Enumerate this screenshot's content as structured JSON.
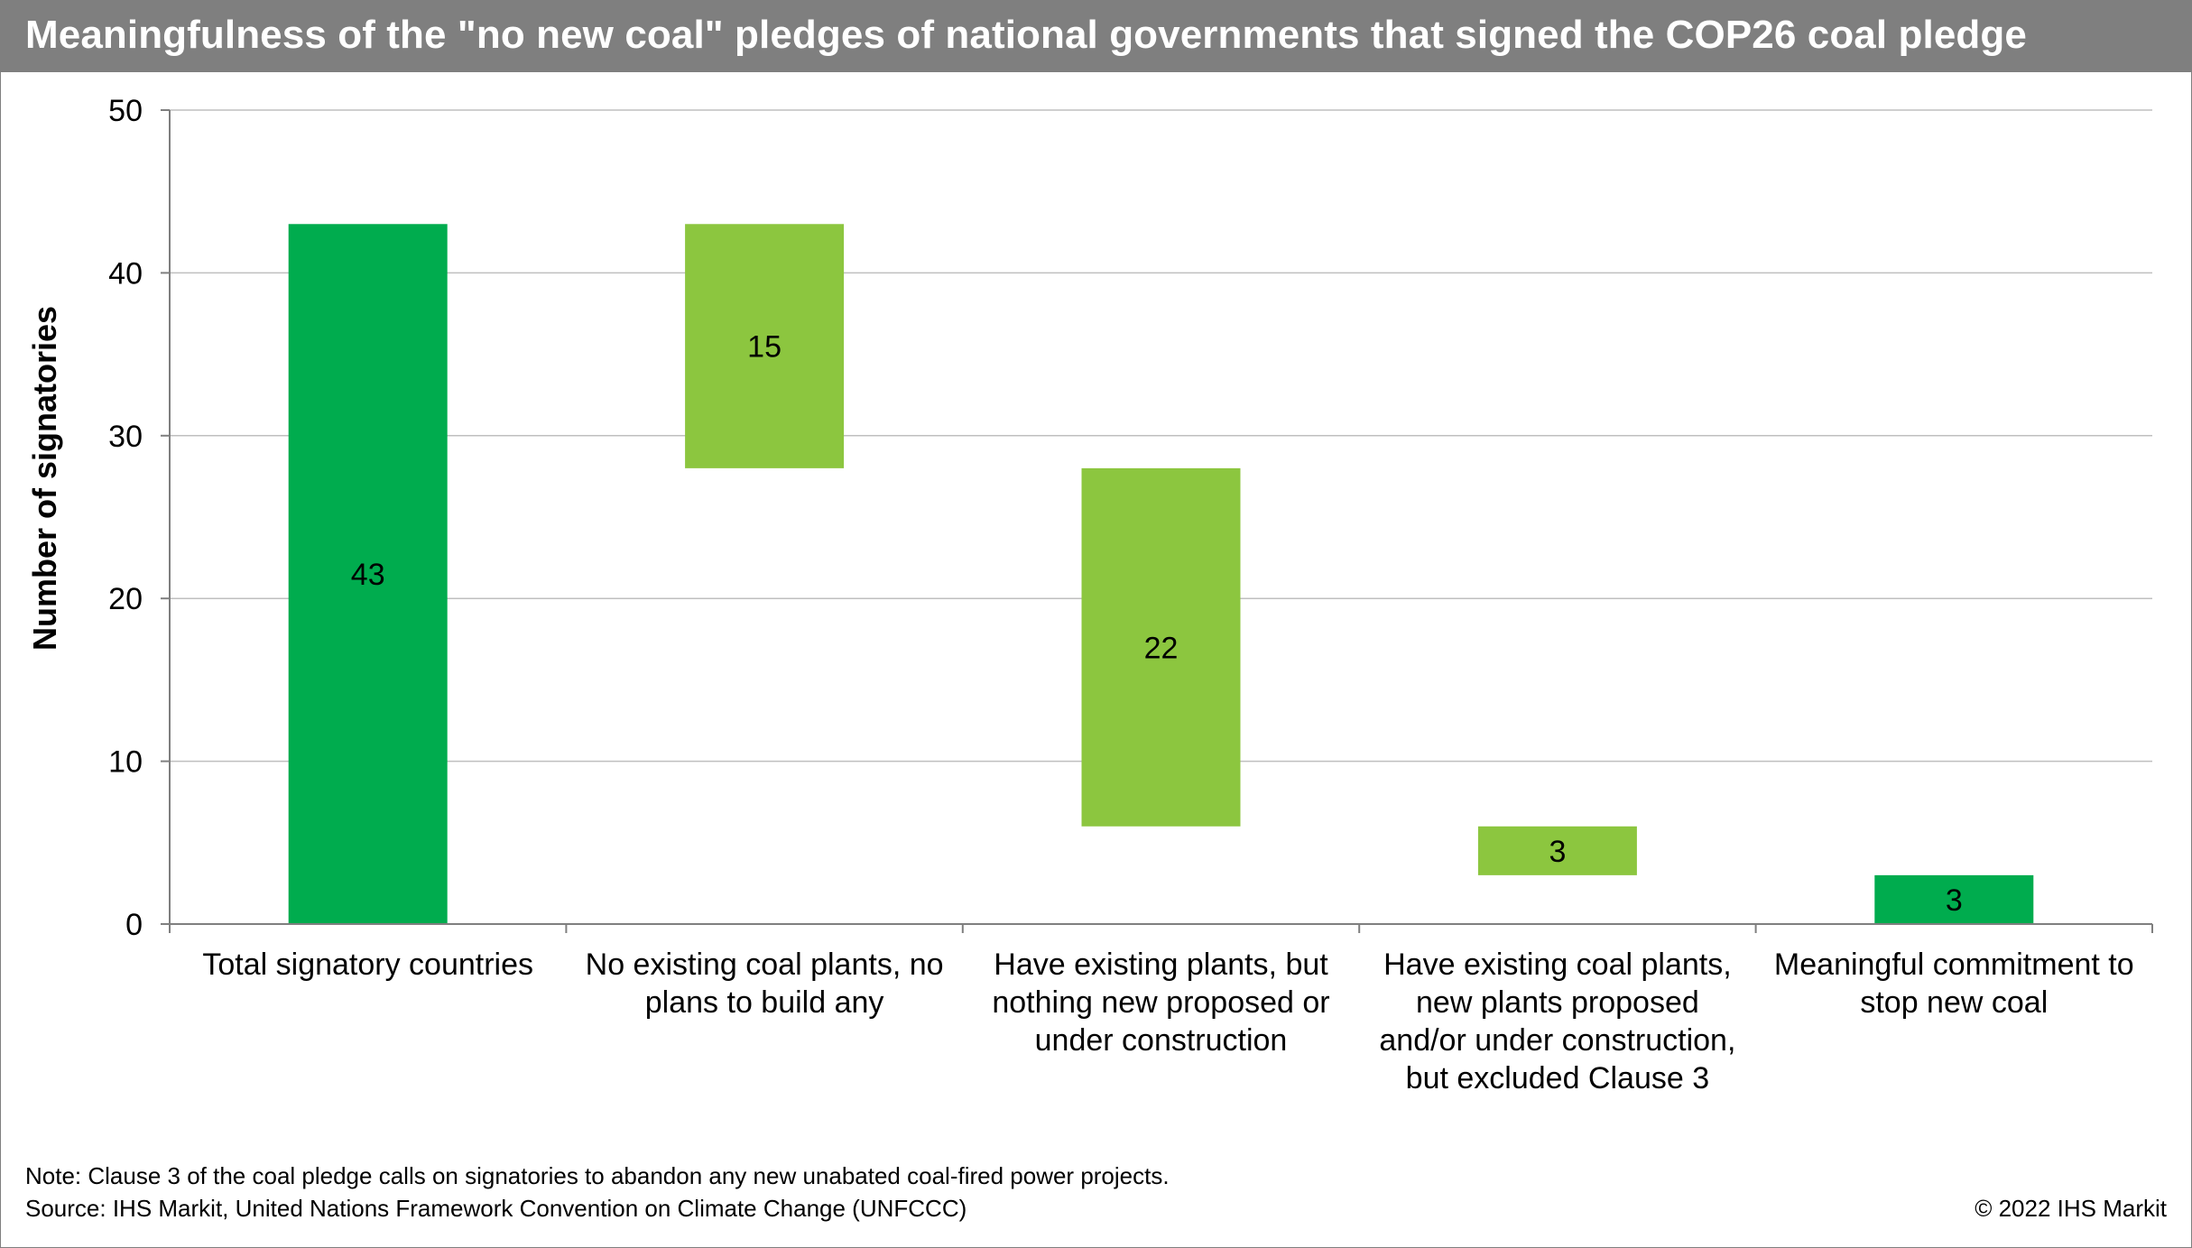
{
  "chart_data": {
    "type": "waterfall",
    "title": "Meaningfulness of the \"no new coal\" pledges of national governments that signed the COP26 coal pledge",
    "ylabel": "Number of signatories",
    "xlabel": "",
    "ylim": [
      0,
      50
    ],
    "yticks": [
      0,
      10,
      20,
      30,
      40,
      50
    ],
    "grid": true,
    "categories": [
      [
        "Total signatory countries"
      ],
      [
        "No existing coal plants, no",
        "plans to build any"
      ],
      [
        "Have existing plants, but",
        "nothing new proposed or",
        "under construction"
      ],
      [
        "Have existing coal plants,",
        "new plants proposed",
        "and/or under construction,",
        "but excluded Clause 3"
      ],
      [
        "Meaningful commitment to",
        "stop new coal"
      ]
    ],
    "bars": [
      {
        "base": 0,
        "top": 43,
        "label": "43",
        "color": "#00ac4e"
      },
      {
        "base": 28,
        "top": 43,
        "label": "15",
        "color": "#8cc63f"
      },
      {
        "base": 6,
        "top": 28,
        "label": "22",
        "color": "#8cc63f"
      },
      {
        "base": 3,
        "top": 6,
        "label": "3",
        "color": "#8cc63f"
      },
      {
        "base": 0,
        "top": 3,
        "label": "3",
        "color": "#00ac4e"
      }
    ]
  },
  "footer": {
    "note": "Note: Clause 3 of the coal pledge calls on signatories to abandon any new unabated coal-fired power projects.",
    "source": "Source: IHS Markit, United Nations Framework Convention on Climate Change (UNFCCC)",
    "copyright": "© 2022 IHS Markit"
  },
  "colors": {
    "title_bg": "#7f7f7f",
    "total_bar": "#00ac4e",
    "step_bar": "#8cc63f",
    "grid": "#bfbfbf"
  }
}
